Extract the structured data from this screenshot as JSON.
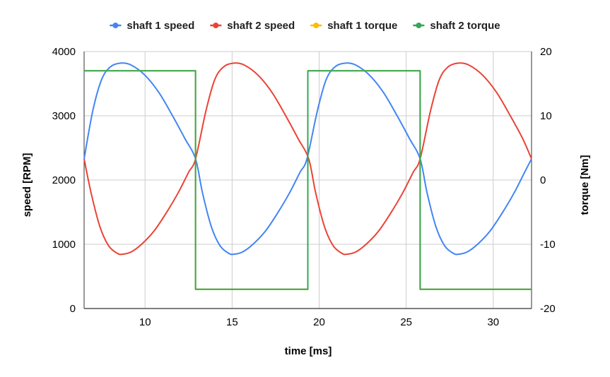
{
  "chart_data": {
    "type": "line",
    "xlabel": "time [ms]",
    "ylabel_left": "speed [RPM]",
    "ylabel_right": "torque [Nm]",
    "xlim": [
      6.5,
      32.2
    ],
    "ylim_left": [
      0,
      4000
    ],
    "ylim_right": [
      -20,
      20
    ],
    "x_ticks": [
      10,
      15,
      20,
      25,
      30
    ],
    "y_ticks_left": [
      0,
      1000,
      2000,
      3000,
      4000
    ],
    "y_ticks_right": [
      -20,
      -10,
      0,
      10,
      20
    ],
    "grid": true,
    "legend_position": "top",
    "series": [
      {
        "name": "shaft 1 speed",
        "axis": "left",
        "color": "#4285f4",
        "x": [
          6.5,
          7.0,
          7.5,
          8.0,
          8.6,
          9.2,
          10.0,
          10.8,
          11.6,
          12.3,
          12.9,
          13.3,
          13.8,
          14.3,
          14.8,
          15.1,
          15.6,
          16.2,
          16.9,
          17.6,
          18.3,
          18.9,
          19.3,
          19.9,
          20.4,
          20.9,
          21.5,
          22.1,
          22.9,
          23.7,
          24.5,
          25.2,
          25.8,
          26.2,
          26.7,
          27.2,
          27.7,
          28.0,
          28.5,
          29.1,
          29.8,
          30.5,
          31.2,
          31.8,
          32.2
        ],
        "y": [
          2330,
          3080,
          3560,
          3760,
          3820,
          3790,
          3630,
          3360,
          2990,
          2640,
          2330,
          1800,
          1280,
          980,
          860,
          845,
          880,
          1000,
          1200,
          1480,
          1800,
          2120,
          2330,
          3080,
          3560,
          3760,
          3820,
          3790,
          3630,
          3360,
          2990,
          2640,
          2330,
          1800,
          1280,
          980,
          860,
          845,
          880,
          1000,
          1200,
          1480,
          1800,
          2120,
          2330
        ]
      },
      {
        "name": "shaft 2 speed",
        "axis": "left",
        "color": "#ea4335",
        "x": [
          6.5,
          6.9,
          7.4,
          7.9,
          8.4,
          8.7,
          9.2,
          9.8,
          10.5,
          11.2,
          11.9,
          12.5,
          12.9,
          13.5,
          14.0,
          14.5,
          15.1,
          15.7,
          16.5,
          17.3,
          18.1,
          18.8,
          19.4,
          19.8,
          20.3,
          20.8,
          21.3,
          21.6,
          22.1,
          22.7,
          23.4,
          24.1,
          24.8,
          25.4,
          25.8,
          26.4,
          26.9,
          27.4,
          28.0,
          28.6,
          29.4,
          30.2,
          31.0,
          31.7,
          32.2
        ],
        "y": [
          2330,
          1800,
          1280,
          980,
          860,
          845,
          880,
          1000,
          1200,
          1480,
          1800,
          2120,
          2330,
          3080,
          3560,
          3760,
          3820,
          3790,
          3630,
          3360,
          2990,
          2640,
          2330,
          1800,
          1280,
          980,
          860,
          845,
          880,
          1000,
          1200,
          1480,
          1800,
          2120,
          2330,
          3080,
          3560,
          3760,
          3820,
          3790,
          3630,
          3360,
          2990,
          2640,
          2330
        ]
      },
      {
        "name": "shaft 1 torque",
        "axis": "right",
        "color": "#fbbc04",
        "step": true,
        "x": [
          6.5,
          12.9,
          12.9,
          19.35,
          19.35,
          25.8,
          25.8,
          32.2
        ],
        "y": [
          17,
          17,
          -17,
          -17,
          17,
          17,
          -17,
          -17
        ]
      },
      {
        "name": "shaft 2 torque",
        "axis": "right",
        "color": "#34a853",
        "step": true,
        "x": [
          6.5,
          12.9,
          12.9,
          19.35,
          19.35,
          25.8,
          25.8,
          32.2
        ],
        "y": [
          17,
          17,
          -17,
          -17,
          17,
          17,
          -17,
          -17
        ]
      }
    ]
  }
}
